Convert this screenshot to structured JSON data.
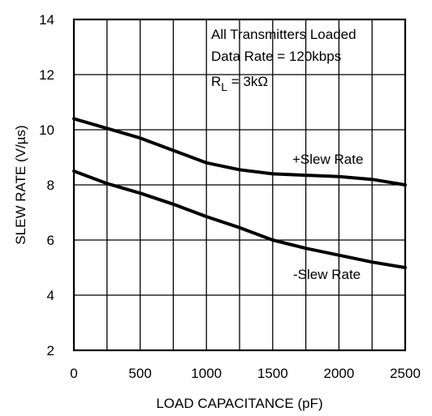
{
  "chart_data": {
    "type": "line",
    "xlabel": "LOAD CAPACITANCE (pF)",
    "ylabel": "SLEW RATE (V/µs)",
    "xlim": [
      0,
      2500
    ],
    "ylim": [
      2,
      14
    ],
    "x_ticks": [
      0,
      500,
      1000,
      1500,
      2000,
      2500
    ],
    "y_ticks": [
      2,
      4,
      6,
      8,
      10,
      12,
      14
    ],
    "grid": true,
    "annotation": {
      "line1": "All Transmitters Loaded",
      "line2": "Data Rate = 120kbps",
      "rl_prefix": "R",
      "rl_sub": "L",
      "rl_suffix": " = 3kΩ"
    },
    "series": [
      {
        "name": "+Slew Rate",
        "x": [
          0,
          250,
          500,
          750,
          1000,
          1250,
          1500,
          1750,
          2000,
          2250,
          2500
        ],
        "y": [
          10.4,
          10.05,
          9.7,
          9.25,
          8.8,
          8.55,
          8.4,
          8.35,
          8.3,
          8.2,
          8.0
        ]
      },
      {
        "name": "-Slew Rate",
        "x": [
          0,
          250,
          500,
          750,
          1000,
          1250,
          1500,
          1750,
          2000,
          2250,
          2500
        ],
        "y": [
          8.5,
          8.05,
          7.7,
          7.3,
          6.85,
          6.45,
          6.0,
          5.7,
          5.45,
          5.2,
          5.0
        ]
      }
    ]
  }
}
